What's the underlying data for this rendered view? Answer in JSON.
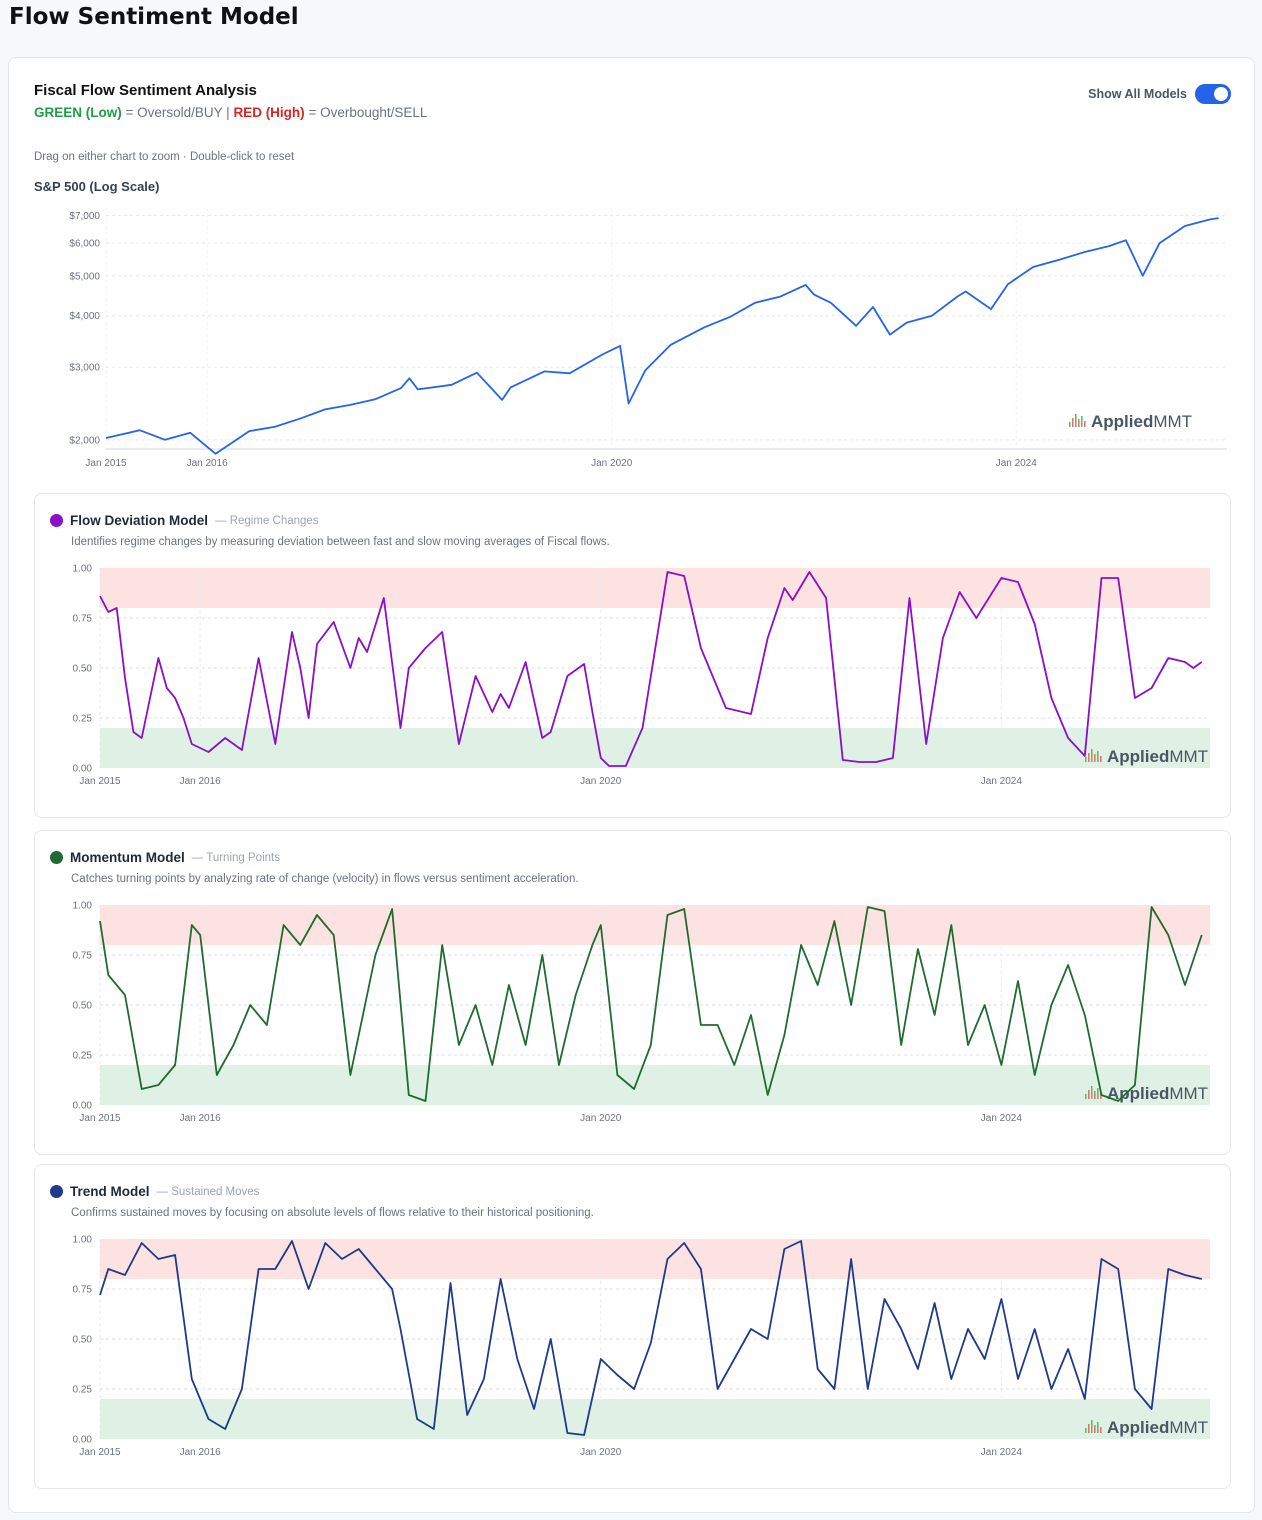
{
  "page_title": "Flow Sentiment Model",
  "card": {
    "title": "Fiscal Flow Sentiment Analysis",
    "legend_green": "GREEN (Low)",
    "legend_mid": " = Oversold/BUY | ",
    "legend_red": "RED (High)",
    "legend_end": " = Overbought/SELL",
    "toggle_label": "Show All Models",
    "toggle_on": true,
    "hint": "Drag on either chart to zoom · Double-click to reset",
    "sp_title": "S&P 500 (Log Scale)"
  },
  "brand": {
    "applied": "Applied",
    "mmt": "MMT"
  },
  "colors": {
    "sp500": "#2563eb",
    "flow": "#8b0fc8",
    "momentum": "#1f6b32",
    "trend": "#1e3a8a",
    "red_zone": "#fde2e2",
    "green_zone": "#dff1e4",
    "toggle": "#2563eb"
  },
  "models": [
    {
      "name": "Flow Deviation Model",
      "subtitle": "— Regime Changes",
      "description": "Identifies regime changes by measuring deviation between fast and slow moving averages of Fiscal flows.",
      "color": "#8b0fc8"
    },
    {
      "name": "Momentum Model",
      "subtitle": "— Turning Points",
      "description": "Catches turning points by analyzing rate of change (velocity) in flows versus sentiment acceleration.",
      "color": "#1f6b32"
    },
    {
      "name": "Trend Model",
      "subtitle": "— Sustained Moves",
      "description": "Confirms sustained moves by focusing on absolute levels of flows relative to their historical positioning.",
      "color": "#1e3a8a"
    }
  ],
  "chart_data": [
    {
      "type": "line",
      "title": "S&P 500 (Log Scale)",
      "log_scale": true,
      "ylim": [
        1900,
        7300
      ],
      "xlim": [
        "2015-01",
        "2026-02"
      ],
      "y_ticks": [
        "$2,000",
        "$3,000",
        "$4,000",
        "$5,000",
        "$6,000",
        "$7,000"
      ],
      "y_tick_values": [
        2000,
        3000,
        4000,
        5000,
        6000,
        7000
      ],
      "x_ticks": [
        "Jan 2015",
        "Jan 2016",
        "Jan 2020",
        "Jan 2024"
      ],
      "x_tick_dates": [
        "2015-01",
        "2016-01",
        "2020-01",
        "2024-01"
      ],
      "grid": true,
      "series": [
        {
          "x": [
            "2015-01",
            "2015-05",
            "2015-08",
            "2015-11",
            "2016-02",
            "2016-06",
            "2016-09",
            "2016-12",
            "2017-03",
            "2017-06",
            "2017-09",
            "2017-12",
            "2018-01",
            "2018-02",
            "2018-06",
            "2018-09",
            "2018-12",
            "2019-01",
            "2019-05",
            "2019-08",
            "2019-12",
            "2020-02",
            "2020-03",
            "2020-05",
            "2020-08",
            "2020-12",
            "2021-03",
            "2021-06",
            "2021-09",
            "2021-12",
            "2022-01",
            "2022-03",
            "2022-06",
            "2022-08",
            "2022-10",
            "2022-12",
            "2023-03",
            "2023-06",
            "2023-07",
            "2023-10",
            "2023-12",
            "2024-03",
            "2024-06",
            "2024-09",
            "2024-12",
            "2025-02",
            "2025-04",
            "2025-06",
            "2025-09",
            "2025-12",
            "2026-01"
          ],
          "y": [
            2020,
            2110,
            2000,
            2080,
            1850,
            2100,
            2150,
            2250,
            2370,
            2430,
            2510,
            2670,
            2820,
            2650,
            2720,
            2910,
            2500,
            2680,
            2930,
            2900,
            3230,
            3380,
            2450,
            2950,
            3400,
            3750,
            3970,
            4300,
            4450,
            4750,
            4500,
            4300,
            3780,
            4200,
            3600,
            3850,
            4000,
            4450,
            4580,
            4150,
            4770,
            5250,
            5460,
            5700,
            5900,
            6100,
            5000,
            6000,
            6600,
            6850,
            6900
          ]
        }
      ]
    },
    {
      "type": "line",
      "title": "Flow Deviation Model",
      "ylim": [
        0,
        1
      ],
      "y_ticks": [
        "0.00",
        "0.25",
        "0.50",
        "0.75",
        "1.00"
      ],
      "x_ticks": [
        "Jan 2015",
        "Jan 2016",
        "Jan 2020",
        "Jan 2024"
      ],
      "x_tick_dates": [
        "2015-01",
        "2016-01",
        "2020-01",
        "2024-01"
      ],
      "xlim": [
        "2015-01",
        "2026-02"
      ],
      "zones": {
        "oversold": [
          0,
          0.2
        ],
        "overbought": [
          0.8,
          1.0
        ]
      },
      "series": [
        {
          "name": "Flow Deviation Model",
          "x": [
            "2015-01",
            "2015-02",
            "2015-03",
            "2015-04",
            "2015-05",
            "2015-06",
            "2015-08",
            "2015-09",
            "2015-10",
            "2015-11",
            "2015-12",
            "2016-02",
            "2016-04",
            "2016-06",
            "2016-08",
            "2016-10",
            "2016-12",
            "2017-01",
            "2017-02",
            "2017-03",
            "2017-05",
            "2017-07",
            "2017-08",
            "2017-09",
            "2017-11",
            "2018-01",
            "2018-02",
            "2018-04",
            "2018-06",
            "2018-07",
            "2018-08",
            "2018-10",
            "2018-12",
            "2019-01",
            "2019-02",
            "2019-04",
            "2019-06",
            "2019-07",
            "2019-09",
            "2019-11",
            "2019-12",
            "2020-01",
            "2020-02",
            "2020-04",
            "2020-06",
            "2020-09",
            "2020-11",
            "2021-01",
            "2021-04",
            "2021-07",
            "2021-09",
            "2021-11",
            "2021-12",
            "2022-02",
            "2022-04",
            "2022-06",
            "2022-08",
            "2022-10",
            "2022-12",
            "2023-02",
            "2023-04",
            "2023-06",
            "2023-08",
            "2023-10",
            "2024-01",
            "2024-03",
            "2024-05",
            "2024-07",
            "2024-09",
            "2024-11",
            "2025-01",
            "2025-03",
            "2025-05",
            "2025-07",
            "2025-09",
            "2025-11",
            "2025-12",
            "2026-01"
          ],
          "y": [
            0.86,
            0.78,
            0.8,
            0.45,
            0.18,
            0.15,
            0.55,
            0.4,
            0.35,
            0.25,
            0.12,
            0.08,
            0.15,
            0.09,
            0.55,
            0.12,
            0.68,
            0.5,
            0.25,
            0.62,
            0.73,
            0.5,
            0.65,
            0.58,
            0.85,
            0.2,
            0.5,
            0.6,
            0.68,
            0.4,
            0.12,
            0.46,
            0.28,
            0.37,
            0.3,
            0.53,
            0.15,
            0.18,
            0.46,
            0.52,
            0.28,
            0.05,
            0.01,
            0.01,
            0.2,
            0.98,
            0.96,
            0.6,
            0.3,
            0.27,
            0.65,
            0.9,
            0.84,
            0.98,
            0.85,
            0.04,
            0.03,
            0.03,
            0.05,
            0.85,
            0.12,
            0.65,
            0.88,
            0.75,
            0.95,
            0.93,
            0.72,
            0.35,
            0.15,
            0.06,
            0.95,
            0.95,
            0.35,
            0.4,
            0.55,
            0.53,
            0.5,
            0.53
          ]
        }
      ]
    },
    {
      "type": "line",
      "title": "Momentum Model",
      "ylim": [
        0,
        1
      ],
      "y_ticks": [
        "0.00",
        "0.25",
        "0.50",
        "0.75",
        "1.00"
      ],
      "x_ticks": [
        "Jan 2015",
        "Jan 2016",
        "Jan 2020",
        "Jan 2024"
      ],
      "x_tick_dates": [
        "2015-01",
        "2016-01",
        "2020-01",
        "2024-01"
      ],
      "xlim": [
        "2015-01",
        "2026-02"
      ],
      "zones": {
        "oversold": [
          0,
          0.2
        ],
        "overbought": [
          0.8,
          1.0
        ]
      },
      "series": [
        {
          "name": "Momentum Model",
          "x": [
            "2015-01",
            "2015-02",
            "2015-04",
            "2015-06",
            "2015-08",
            "2015-10",
            "2015-12",
            "2016-01",
            "2016-03",
            "2016-05",
            "2016-07",
            "2016-09",
            "2016-11",
            "2017-01",
            "2017-03",
            "2017-05",
            "2017-07",
            "2017-09",
            "2017-10",
            "2017-12",
            "2018-02",
            "2018-04",
            "2018-06",
            "2018-08",
            "2018-10",
            "2018-12",
            "2019-02",
            "2019-04",
            "2019-06",
            "2019-08",
            "2019-10",
            "2019-12",
            "2020-01",
            "2020-03",
            "2020-05",
            "2020-07",
            "2020-09",
            "2020-11",
            "2021-01",
            "2021-03",
            "2021-05",
            "2021-07",
            "2021-09",
            "2021-11",
            "2022-01",
            "2022-03",
            "2022-05",
            "2022-07",
            "2022-09",
            "2022-11",
            "2023-01",
            "2023-03",
            "2023-05",
            "2023-07",
            "2023-09",
            "2023-11",
            "2024-01",
            "2024-03",
            "2024-05",
            "2024-07",
            "2024-09",
            "2024-11",
            "2025-01",
            "2025-03",
            "2025-05",
            "2025-07",
            "2025-09",
            "2025-11",
            "2026-01"
          ],
          "y": [
            0.92,
            0.65,
            0.55,
            0.08,
            0.1,
            0.2,
            0.9,
            0.85,
            0.15,
            0.3,
            0.5,
            0.4,
            0.9,
            0.8,
            0.95,
            0.85,
            0.15,
            0.55,
            0.75,
            0.98,
            0.05,
            0.02,
            0.8,
            0.3,
            0.5,
            0.2,
            0.6,
            0.3,
            0.75,
            0.2,
            0.55,
            0.8,
            0.9,
            0.15,
            0.08,
            0.3,
            0.95,
            0.98,
            0.4,
            0.4,
            0.2,
            0.45,
            0.05,
            0.35,
            0.8,
            0.6,
            0.92,
            0.5,
            0.99,
            0.97,
            0.3,
            0.78,
            0.45,
            0.9,
            0.3,
            0.5,
            0.2,
            0.62,
            0.15,
            0.5,
            0.7,
            0.45,
            0.05,
            0.02,
            0.1,
            0.99,
            0.85,
            0.6,
            0.85
          ]
        }
      ]
    },
    {
      "type": "line",
      "title": "Trend Model",
      "ylim": [
        0,
        1
      ],
      "y_ticks": [
        "0.00",
        "0.25",
        "0.50",
        "0.75",
        "1.00"
      ],
      "x_ticks": [
        "Jan 2015",
        "Jan 2016",
        "Jan 2020",
        "Jan 2024"
      ],
      "x_tick_dates": [
        "2015-01",
        "2016-01",
        "2020-01",
        "2024-01"
      ],
      "xlim": [
        "2015-01",
        "2026-02"
      ],
      "zones": {
        "oversold": [
          0,
          0.2
        ],
        "overbought": [
          0.8,
          1.0
        ]
      },
      "series": [
        {
          "name": "Trend Model",
          "x": [
            "2015-01",
            "2015-02",
            "2015-04",
            "2015-06",
            "2015-08",
            "2015-10",
            "2015-12",
            "2016-02",
            "2016-04",
            "2016-06",
            "2016-08",
            "2016-10",
            "2016-12",
            "2017-02",
            "2017-04",
            "2017-06",
            "2017-08",
            "2017-10",
            "2017-12",
            "2018-01",
            "2018-03",
            "2018-05",
            "2018-07",
            "2018-09",
            "2018-11",
            "2019-01",
            "2019-03",
            "2019-05",
            "2019-07",
            "2019-09",
            "2019-11",
            "2020-01",
            "2020-03",
            "2020-05",
            "2020-07",
            "2020-09",
            "2020-11",
            "2021-01",
            "2021-03",
            "2021-05",
            "2021-07",
            "2021-09",
            "2021-11",
            "2022-01",
            "2022-03",
            "2022-05",
            "2022-07",
            "2022-09",
            "2022-11",
            "2023-01",
            "2023-03",
            "2023-05",
            "2023-07",
            "2023-09",
            "2023-11",
            "2024-01",
            "2024-03",
            "2024-05",
            "2024-07",
            "2024-09",
            "2024-11",
            "2025-01",
            "2025-03",
            "2025-05",
            "2025-07",
            "2025-09",
            "2025-11",
            "2026-01"
          ],
          "y": [
            0.72,
            0.85,
            0.82,
            0.98,
            0.9,
            0.92,
            0.3,
            0.1,
            0.05,
            0.25,
            0.85,
            0.85,
            0.99,
            0.75,
            0.98,
            0.9,
            0.95,
            0.85,
            0.75,
            0.55,
            0.1,
            0.05,
            0.78,
            0.12,
            0.3,
            0.8,
            0.4,
            0.15,
            0.5,
            0.03,
            0.02,
            0.4,
            0.32,
            0.25,
            0.48,
            0.9,
            0.98,
            0.85,
            0.25,
            0.4,
            0.55,
            0.5,
            0.95,
            0.99,
            0.35,
            0.25,
            0.9,
            0.25,
            0.7,
            0.55,
            0.35,
            0.68,
            0.3,
            0.55,
            0.4,
            0.7,
            0.3,
            0.55,
            0.25,
            0.45,
            0.2,
            0.9,
            0.85,
            0.25,
            0.15,
            0.85,
            0.82,
            0.8
          ]
        }
      ]
    }
  ]
}
